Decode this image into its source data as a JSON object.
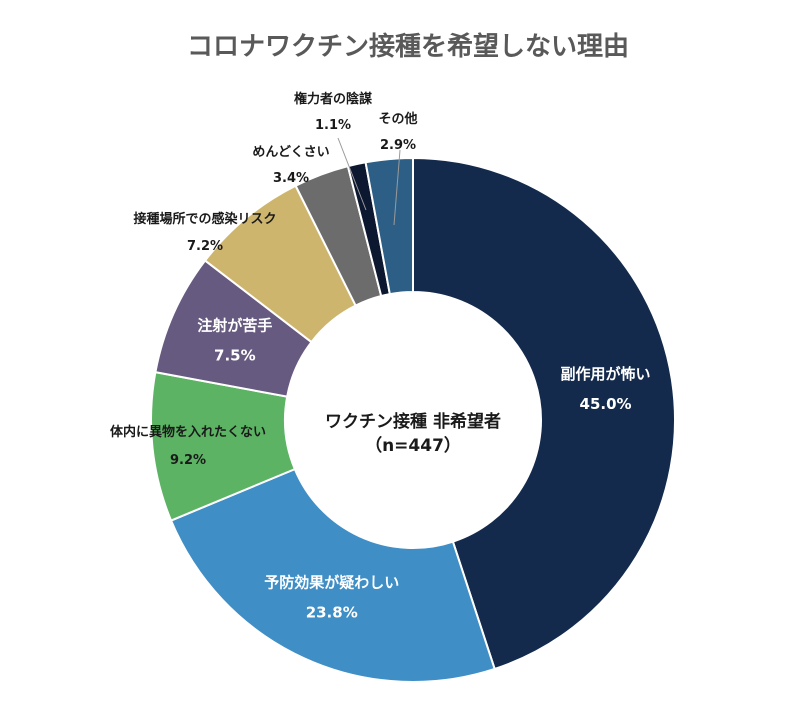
{
  "chart_data": {
    "type": "pie",
    "donut": true,
    "title": "コロナワクチン接種を希望しない理由",
    "center_label": [
      "ワクチン接種 非希望者",
      "（n=447）"
    ],
    "slices": [
      {
        "label": "副作用が怖い",
        "value": 45.0,
        "value_label": "45.0%",
        "color": "#132a4d"
      },
      {
        "label": "予防効果が疑わしい",
        "value": 23.8,
        "value_label": "23.8%",
        "color": "#3f8ec6"
      },
      {
        "label": "体内に異物を入れたくない",
        "value": 9.2,
        "value_label": "9.2%",
        "color": "#5db364"
      },
      {
        "label": "注射が苦手",
        "value": 7.5,
        "value_label": "7.5%",
        "color": "#675a80"
      },
      {
        "label": "接種場所での感染リスク",
        "value": 7.2,
        "value_label": "7.2%",
        "color": "#ceb56d"
      },
      {
        "label": "めんどくさい",
        "value": 3.4,
        "value_label": "3.4%",
        "color": "#6c6c6c"
      },
      {
        "label": "権力者の陰謀",
        "value": 1.1,
        "value_label": "1.1%",
        "color": "#0c1730"
      },
      {
        "label": "その他",
        "value": 2.9,
        "value_label": "2.9%",
        "color": "#2d5f86"
      }
    ]
  }
}
